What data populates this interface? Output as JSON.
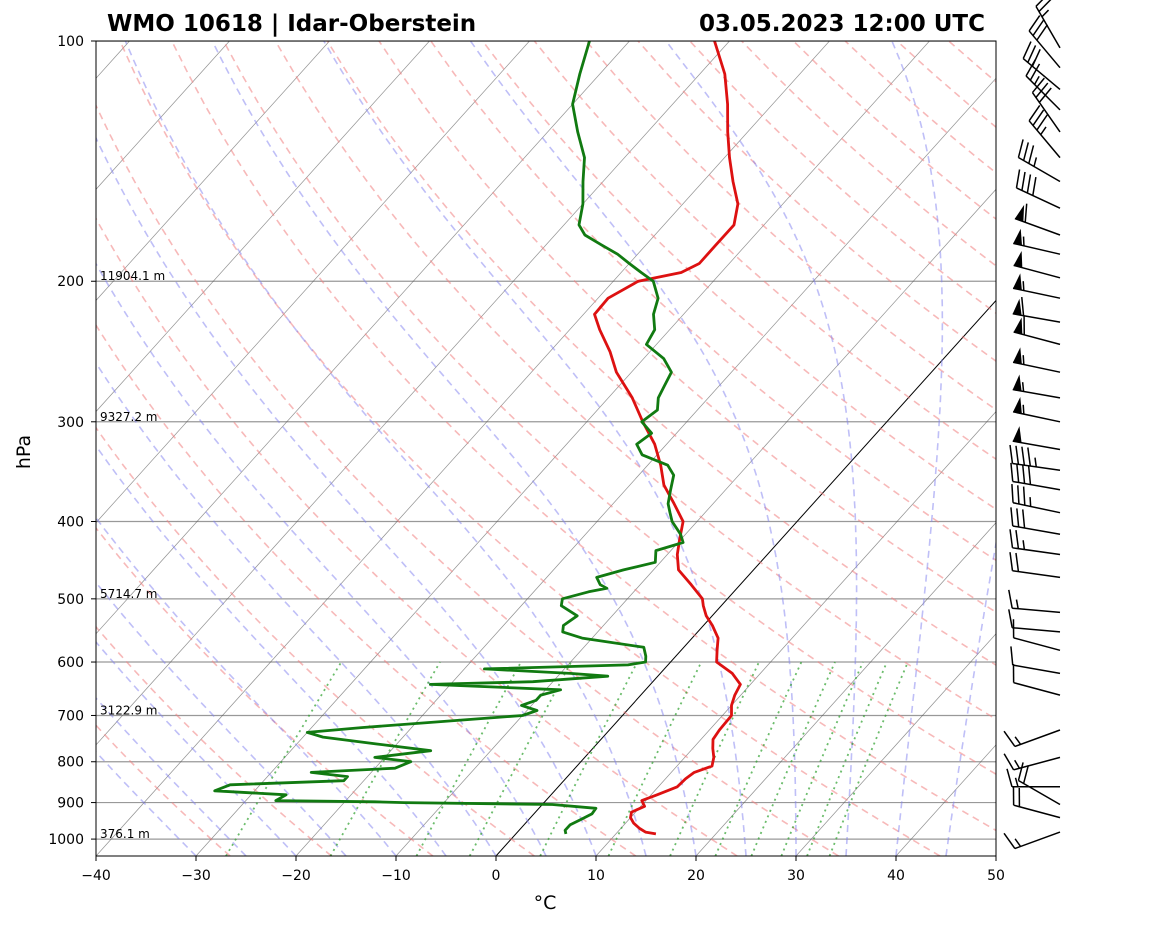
{
  "header": {
    "station": "WMO 10618 | Idar-Oberstein",
    "datetime": "03.05.2023 12:00 UTC"
  },
  "chart_data": {
    "type": "line",
    "subtype": "skew-T log-p sounding",
    "xlabel": "°C",
    "ylabel": "hPa",
    "xlim": [
      -40,
      50
    ],
    "ylim": [
      1050,
      100
    ],
    "yscale": "log",
    "skew": true,
    "grid": true,
    "x_ticks": [
      -40,
      -30,
      -20,
      -10,
      0,
      10,
      20,
      30,
      40,
      50
    ],
    "x_tick_labels": [
      "−40",
      "−30",
      "−20",
      "−10",
      "0",
      "10",
      "20",
      "30",
      "40",
      "50"
    ],
    "y_ticks": [
      100,
      200,
      300,
      400,
      500,
      600,
      700,
      800,
      900,
      1000
    ],
    "y_tick_labels": [
      "100",
      "200",
      "300",
      "400",
      "500",
      "600",
      "700",
      "800",
      "900",
      "1000"
    ],
    "height_labels": [
      {
        "p": 200,
        "label": "11904.1 m"
      },
      {
        "p": 300,
        "label": "9327.2 m"
      },
      {
        "p": 500,
        "label": "5714.7 m"
      },
      {
        "p": 700,
        "label": "3122.9 m"
      },
      {
        "p": 1000,
        "label": "376.1 m"
      }
    ],
    "series": [
      {
        "key": "temperature",
        "color": "#dd1111",
        "points": [
          [
            985,
            14.0
          ],
          [
            980,
            12.8
          ],
          [
            970,
            11.9
          ],
          [
            955,
            10.8
          ],
          [
            940,
            10.0
          ],
          [
            925,
            9.6
          ],
          [
            910,
            10.4
          ],
          [
            895,
            9.6
          ],
          [
            880,
            10.6
          ],
          [
            860,
            11.9
          ],
          [
            840,
            12.0
          ],
          [
            825,
            12.3
          ],
          [
            810,
            13.5
          ],
          [
            790,
            12.9
          ],
          [
            770,
            12.0
          ],
          [
            750,
            11.2
          ],
          [
            730,
            11.0
          ],
          [
            700,
            10.9
          ],
          [
            680,
            10.0
          ],
          [
            660,
            9.4
          ],
          [
            640,
            9.0
          ],
          [
            620,
            7.2
          ],
          [
            600,
            4.6
          ],
          [
            580,
            3.6
          ],
          [
            560,
            2.6
          ],
          [
            540,
            0.9
          ],
          [
            525,
            -0.6
          ],
          [
            510,
            -1.8
          ],
          [
            500,
            -2.5
          ],
          [
            480,
            -4.9
          ],
          [
            460,
            -7.5
          ],
          [
            440,
            -9.0
          ],
          [
            420,
            -10.2
          ],
          [
            400,
            -11.4
          ],
          [
            380,
            -13.9
          ],
          [
            360,
            -16.6
          ],
          [
            340,
            -18.7
          ],
          [
            320,
            -21.2
          ],
          [
            300,
            -24.4
          ],
          [
            280,
            -27.6
          ],
          [
            260,
            -31.5
          ],
          [
            245,
            -34.0
          ],
          [
            230,
            -37.0
          ],
          [
            220,
            -38.9
          ],
          [
            210,
            -39.0
          ],
          [
            200,
            -37.5
          ],
          [
            195,
            -34.0
          ],
          [
            190,
            -33.0
          ],
          [
            180,
            -33.0
          ],
          [
            170,
            -33.0
          ],
          [
            160,
            -34.5
          ],
          [
            150,
            -37.0
          ],
          [
            140,
            -39.5
          ],
          [
            130,
            -42.0
          ],
          [
            120,
            -44.5
          ],
          [
            110,
            -47.5
          ],
          [
            100,
            -51.5
          ]
        ]
      },
      {
        "key": "dewpoint",
        "color": "#117a11",
        "points": [
          [
            985,
            5.0
          ],
          [
            975,
            4.6
          ],
          [
            960,
            4.6
          ],
          [
            945,
            5.2
          ],
          [
            930,
            5.8
          ],
          [
            915,
            5.7
          ],
          [
            905,
            1.0
          ],
          [
            900,
            -14.0
          ],
          [
            898,
            -17.0
          ],
          [
            895,
            -27.0
          ],
          [
            880,
            -26.5
          ],
          [
            870,
            -34.0
          ],
          [
            855,
            -33.0
          ],
          [
            845,
            -22.0
          ],
          [
            835,
            -22.0
          ],
          [
            825,
            -26.0
          ],
          [
            815,
            -18.0
          ],
          [
            800,
            -17.0
          ],
          [
            790,
            -21.0
          ],
          [
            775,
            -16.0
          ],
          [
            760,
            -22.0
          ],
          [
            745,
            -28.0
          ],
          [
            735,
            -30.0
          ],
          [
            725,
            -25.0
          ],
          [
            700,
            -10.0
          ],
          [
            690,
            -9.0
          ],
          [
            680,
            -11.0
          ],
          [
            670,
            -10.0
          ],
          [
            660,
            -10.0
          ],
          [
            650,
            -8.5
          ],
          [
            640,
            -22.0
          ],
          [
            635,
            -12.0
          ],
          [
            625,
            -5.0
          ],
          [
            620,
            -9.0
          ],
          [
            612,
            -18.0
          ],
          [
            605,
            -4.0
          ],
          [
            600,
            -2.5
          ],
          [
            590,
            -3.0
          ],
          [
            575,
            -4.0
          ],
          [
            560,
            -11.0
          ],
          [
            550,
            -13.5
          ],
          [
            540,
            -14.0
          ],
          [
            525,
            -13.5
          ],
          [
            510,
            -16.0
          ],
          [
            500,
            -16.5
          ],
          [
            490,
            -14.5
          ],
          [
            485,
            -13.0
          ],
          [
            480,
            -14.0
          ],
          [
            470,
            -15.0
          ],
          [
            460,
            -13.0
          ],
          [
            450,
            -10.5
          ],
          [
            435,
            -11.5
          ],
          [
            425,
            -9.5
          ],
          [
            415,
            -10.5
          ],
          [
            400,
            -12.5
          ],
          [
            390,
            -13.5
          ],
          [
            380,
            -14.5
          ],
          [
            365,
            -15.5
          ],
          [
            350,
            -16.5
          ],
          [
            340,
            -18.0
          ],
          [
            330,
            -21.5
          ],
          [
            320,
            -23.0
          ],
          [
            310,
            -22.5
          ],
          [
            300,
            -24.5
          ],
          [
            290,
            -24.0
          ],
          [
            280,
            -25.0
          ],
          [
            270,
            -25.5
          ],
          [
            260,
            -26.0
          ],
          [
            250,
            -28.0
          ],
          [
            240,
            -31.0
          ],
          [
            230,
            -31.5
          ],
          [
            220,
            -33.0
          ],
          [
            210,
            -34.0
          ],
          [
            200,
            -36.0
          ],
          [
            195,
            -38.0
          ],
          [
            190,
            -40.0
          ],
          [
            185,
            -42.0
          ],
          [
            180,
            -44.5
          ],
          [
            175,
            -47.0
          ],
          [
            170,
            -48.5
          ],
          [
            160,
            -50.0
          ],
          [
            150,
            -52.0
          ],
          [
            140,
            -54.0
          ],
          [
            130,
            -57.0
          ],
          [
            120,
            -60.0
          ],
          [
            110,
            -62.0
          ],
          [
            100,
            -64.0
          ]
        ]
      }
    ],
    "wind_barbs": [
      {
        "p": 980,
        "speed_kt": 15,
        "dir_deg": 250
      },
      {
        "p": 940,
        "speed_kt": 20,
        "dir_deg": 285
      },
      {
        "p": 905,
        "speed_kt": 20,
        "dir_deg": 300
      },
      {
        "p": 860,
        "speed_kt": 15,
        "dir_deg": 270
      },
      {
        "p": 790,
        "speed_kt": 15,
        "dir_deg": 255
      },
      {
        "p": 730,
        "speed_kt": 15,
        "dir_deg": 250
      },
      {
        "p": 660,
        "speed_kt": 10,
        "dir_deg": 285
      },
      {
        "p": 620,
        "speed_kt": 10,
        "dir_deg": 280
      },
      {
        "p": 580,
        "speed_kt": 10,
        "dir_deg": 285
      },
      {
        "p": 550,
        "speed_kt": 10,
        "dir_deg": 275
      },
      {
        "p": 520,
        "speed_kt": 15,
        "dir_deg": 275
      },
      {
        "p": 470,
        "speed_kt": 20,
        "dir_deg": 278
      },
      {
        "p": 440,
        "speed_kt": 25,
        "dir_deg": 278
      },
      {
        "p": 415,
        "speed_kt": 30,
        "dir_deg": 280
      },
      {
        "p": 390,
        "speed_kt": 35,
        "dir_deg": 282
      },
      {
        "p": 365,
        "speed_kt": 40,
        "dir_deg": 280
      },
      {
        "p": 345,
        "speed_kt": 45,
        "dir_deg": 278
      },
      {
        "p": 325,
        "speed_kt": 50,
        "dir_deg": 280
      },
      {
        "p": 300,
        "speed_kt": 55,
        "dir_deg": 282
      },
      {
        "p": 280,
        "speed_kt": 55,
        "dir_deg": 280
      },
      {
        "p": 260,
        "speed_kt": 55,
        "dir_deg": 282
      },
      {
        "p": 240,
        "speed_kt": 60,
        "dir_deg": 285
      },
      {
        "p": 225,
        "speed_kt": 60,
        "dir_deg": 280
      },
      {
        "p": 210,
        "speed_kt": 55,
        "dir_deg": 282
      },
      {
        "p": 198,
        "speed_kt": 50,
        "dir_deg": 285
      },
      {
        "p": 185,
        "speed_kt": 55,
        "dir_deg": 283
      },
      {
        "p": 175,
        "speed_kt": 60,
        "dir_deg": 290
      },
      {
        "p": 162,
        "speed_kt": 40,
        "dir_deg": 295
      },
      {
        "p": 150,
        "speed_kt": 35,
        "dir_deg": 300
      },
      {
        "p": 140,
        "speed_kt": 35,
        "dir_deg": 320
      },
      {
        "p": 130,
        "speed_kt": 30,
        "dir_deg": 325
      },
      {
        "p": 122,
        "speed_kt": 25,
        "dir_deg": 315
      },
      {
        "p": 115,
        "speed_kt": 30,
        "dir_deg": 310
      },
      {
        "p": 108,
        "speed_kt": 30,
        "dir_deg": 320
      },
      {
        "p": 102,
        "speed_kt": 25,
        "dir_deg": 330
      }
    ],
    "colors": {
      "dry_adiabat": "#f08080",
      "moist_adiabat": "#7f7fef",
      "mixing_ratio": "#2ca02c",
      "isotherm": "#555555",
      "isobar": "#999999",
      "zero_isotherm": "#000000"
    }
  }
}
